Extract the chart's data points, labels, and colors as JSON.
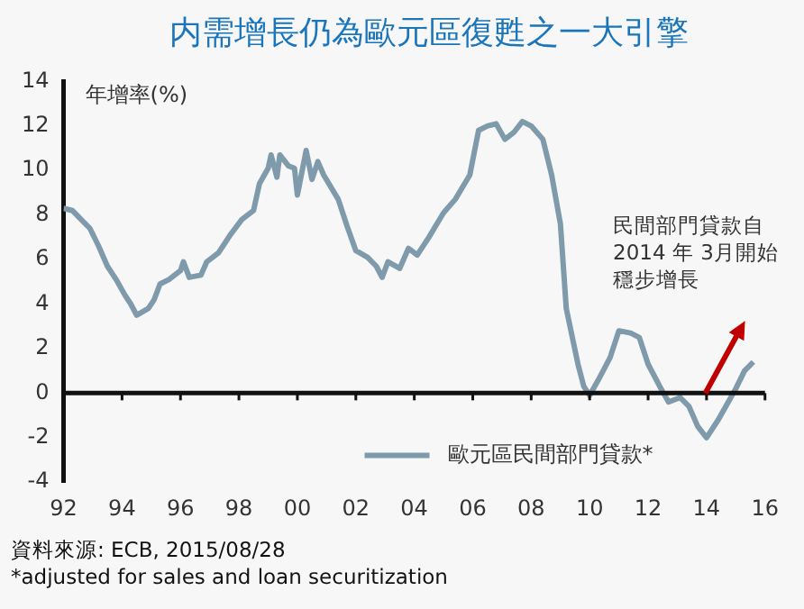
{
  "chart_data": {
    "type": "line",
    "title": "内需增長仍為歐元區復甦之一大引擎",
    "ylabel": "年增率(%)",
    "xlim": [
      1992,
      2016
    ],
    "xticks": [
      {
        "value": 1992,
        "label": "92"
      },
      {
        "value": 1994,
        "label": "94"
      },
      {
        "value": 1996,
        "label": "96"
      },
      {
        "value": 1998,
        "label": "98"
      },
      {
        "value": 2000,
        "label": "00"
      },
      {
        "value": 2002,
        "label": "02"
      },
      {
        "value": 2004,
        "label": "04"
      },
      {
        "value": 2006,
        "label": "06"
      },
      {
        "value": 2008,
        "label": "08"
      },
      {
        "value": 2010,
        "label": "10"
      },
      {
        "value": 2012,
        "label": "12"
      },
      {
        "value": 2014,
        "label": "14"
      },
      {
        "value": 2016,
        "label": "16"
      }
    ],
    "ylim": [
      -4,
      14
    ],
    "yticks": [
      -4,
      -2,
      0,
      2,
      4,
      6,
      8,
      10,
      12,
      14
    ],
    "x": [
      1992.0,
      1992.3,
      1992.6,
      1992.9,
      1993.2,
      1993.5,
      1993.8,
      1994.1,
      1994.3,
      1994.5,
      1994.9,
      1995.1,
      1995.3,
      1995.6,
      1996.0,
      1996.1,
      1996.3,
      1996.7,
      1996.9,
      1997.3,
      1997.7,
      1998.1,
      1998.5,
      1998.7,
      1999.0,
      1999.1,
      1999.3,
      1999.4,
      1999.7,
      1999.9,
      2000.0,
      2000.3,
      2000.5,
      2000.7,
      2000.9,
      2001.4,
      2001.7,
      2002.0,
      2002.4,
      2002.7,
      2002.9,
      2003.1,
      2003.5,
      2003.8,
      2004.1,
      2004.5,
      2005.0,
      2005.4,
      2005.9,
      2006.2,
      2006.5,
      2006.8,
      2007.1,
      2007.4,
      2007.7,
      2008.0,
      2008.4,
      2008.7,
      2009.0,
      2009.2,
      2009.6,
      2009.8,
      2010.0,
      2010.3,
      2010.7,
      2011.0,
      2011.4,
      2011.7,
      2012.0,
      2012.4,
      2012.7,
      2013.1,
      2013.4,
      2013.7,
      2014.0,
      2014.4,
      2014.7,
      2015.0,
      2015.3,
      2015.6
    ],
    "series": [
      {
        "name": "歐元區民間部門貸款*",
        "color": "#7f9aab",
        "values": [
          8.3,
          8.2,
          7.8,
          7.4,
          6.6,
          5.7,
          5.1,
          4.4,
          4.0,
          3.5,
          3.8,
          4.2,
          4.9,
          5.1,
          5.5,
          5.9,
          5.2,
          5.3,
          5.9,
          6.3,
          7.1,
          7.8,
          8.2,
          9.4,
          10.1,
          10.7,
          9.7,
          10.7,
          10.2,
          10.1,
          8.9,
          10.9,
          9.6,
          10.4,
          9.8,
          8.7,
          7.5,
          6.4,
          6.1,
          5.7,
          5.2,
          5.9,
          5.6,
          6.5,
          6.2,
          7.0,
          8.1,
          8.7,
          9.8,
          11.8,
          12.0,
          12.1,
          11.4,
          11.7,
          12.2,
          12.0,
          11.4,
          9.8,
          7.6,
          3.8,
          1.3,
          0.3,
          -0.1,
          0.6,
          1.6,
          2.8,
          2.7,
          2.5,
          1.3,
          0.3,
          -0.4,
          -0.2,
          -0.6,
          -1.5,
          -2.0,
          -1.2,
          -0.5,
          0.2,
          1.0,
          1.4
        ]
      }
    ],
    "ref_lines": [
      {
        "axis": "y",
        "value": 0,
        "color": "#111111"
      }
    ],
    "legend": "bottom right",
    "grid": false,
    "marker": "none",
    "line_style": "solid",
    "annotations": [
      "民間部門貸款自2014 年 3月開始穩步增長",
      "資料來源: ECB, 2015/08/28",
      "*adjusted for sales and loan securitization"
    ]
  }
}
